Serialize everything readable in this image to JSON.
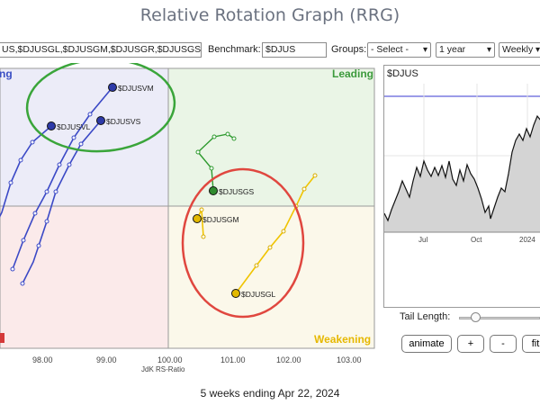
{
  "title": "Relative Rotation Graph (RRG)",
  "toolbar": {
    "symbols_value": "US,$DJUSGL,$DJUSGM,$DJUSGR,$DJUSGS",
    "benchmark_label": "Benchmark:",
    "benchmark_value": "$DJUS",
    "groups_label": "Groups:",
    "groups_value": "- Select -",
    "period_value": "1 year",
    "frequency_value": "Weekly"
  },
  "rrg": {
    "quadrants": {
      "leading": "Leading",
      "improving": "ng",
      "weakening": "Weakening"
    },
    "x_axis_label": "JdK RS-Ratio",
    "x_ticks": [
      "98.00",
      "99.00",
      "100.00",
      "101.00",
      "102.00",
      "103.00"
    ],
    "points": [
      {
        "symbol": "$DJUSVM",
        "color": "#2e3aa8"
      },
      {
        "symbol": "$DJUSVL",
        "color": "#2e3aa8"
      },
      {
        "symbol": "$DJUSVS",
        "color": "#2e3aa8"
      },
      {
        "symbol": "$DJUSGS",
        "color": "#2e8b2e"
      },
      {
        "symbol": "$DJUSGM",
        "color": "#e2b900"
      },
      {
        "symbol": "$DJUSGL",
        "color": "#e2b900"
      }
    ],
    "annotation_colors": {
      "green_circle": "#3aa53a",
      "red_circle": "#e0473f"
    }
  },
  "side_chart": {
    "symbol": "$DJUS",
    "x_ticks": [
      "Jul",
      "Oct",
      "2024"
    ]
  },
  "controls": {
    "tail_length_label": "Tail Length:",
    "animate_label": "animate",
    "plus_label": "+",
    "minus_label": "-",
    "fit_label": "fit"
  },
  "footer": "5 weeks ending Apr 22, 2024",
  "colors": {
    "leading_bg": "#eaf5e6",
    "improving_bg": "#ececf8",
    "lagging_bg": "#fbeaea",
    "weakening_bg": "#fbf8ea",
    "leading_text": "#3c9a3c",
    "improving_text": "#3a4ec4",
    "weakening_text": "#e6b800",
    "lagging_text": "#d43a3a"
  }
}
